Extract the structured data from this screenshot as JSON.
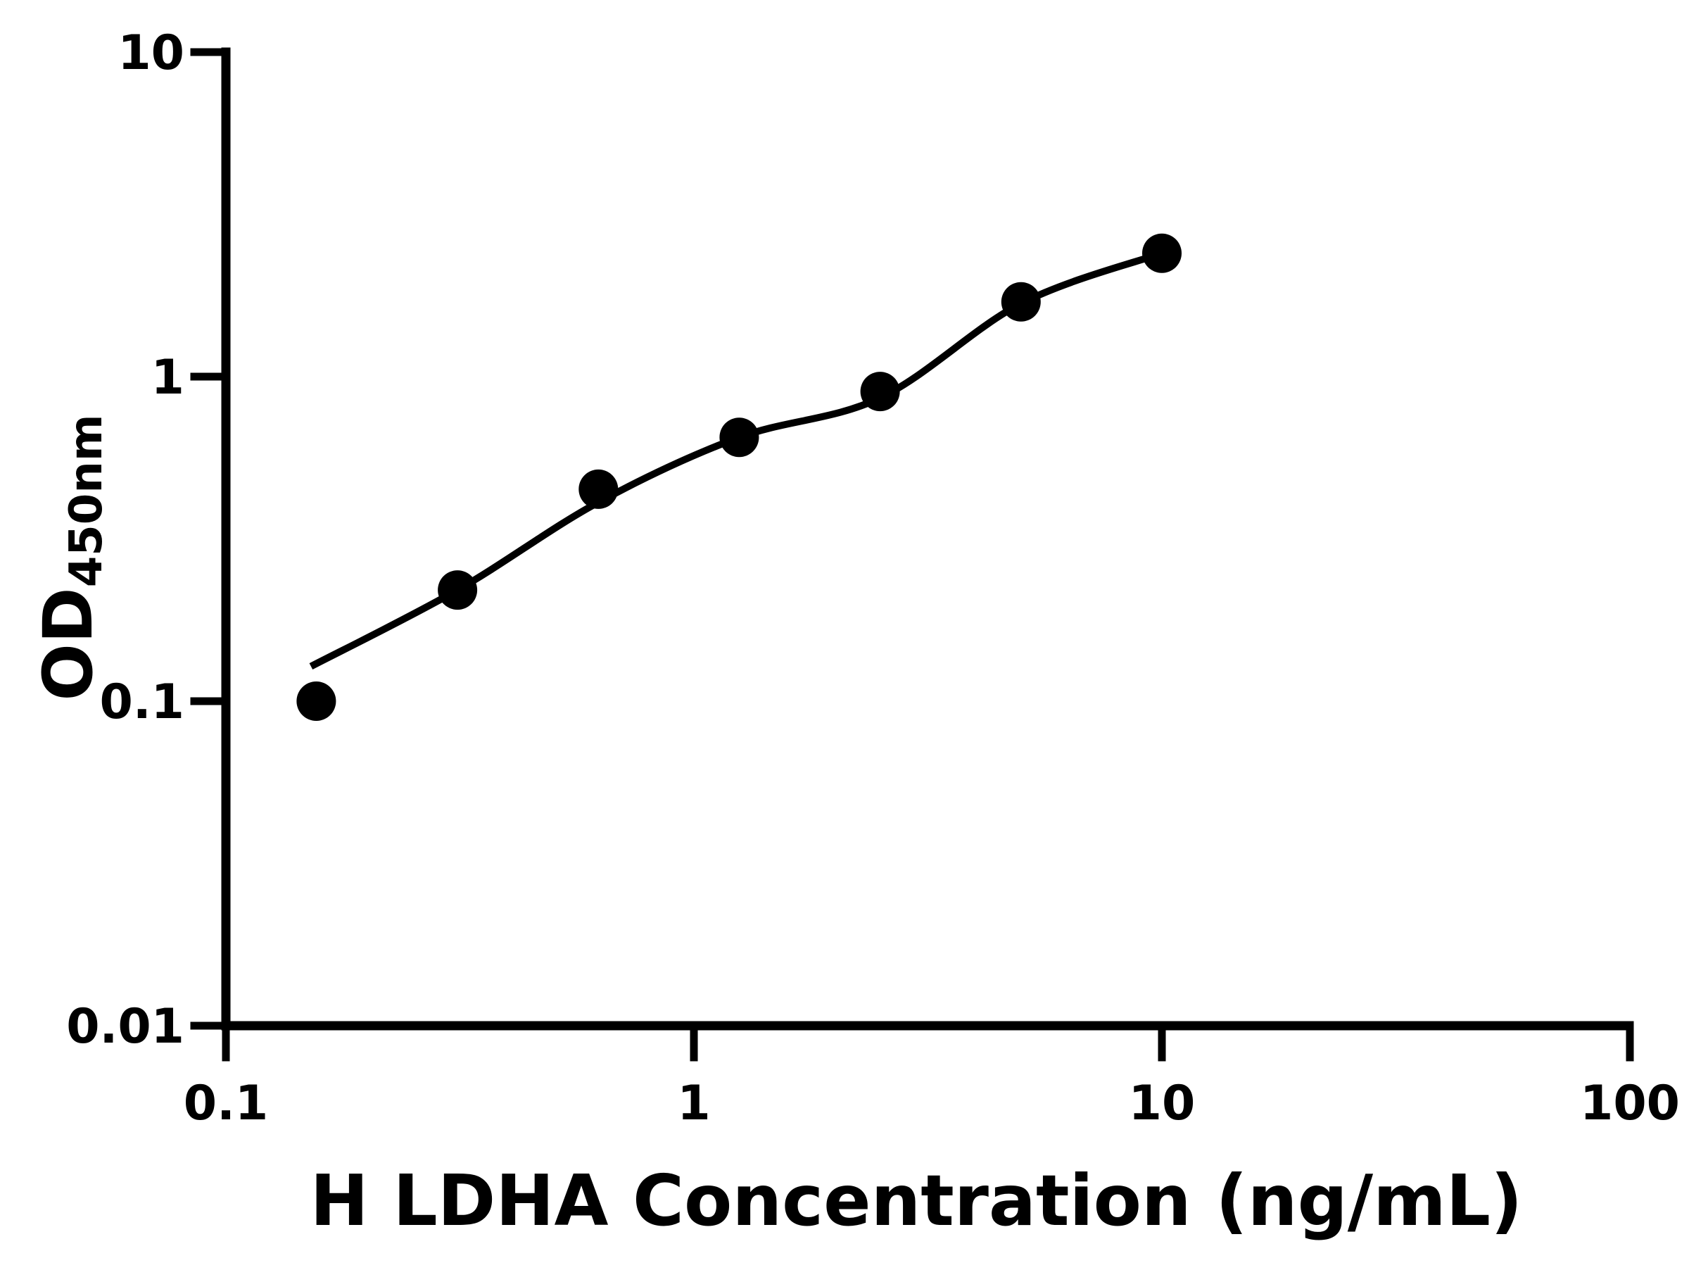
{
  "figure": {
    "background_color": "#ffffff",
    "ink_color": "#000000"
  },
  "chart_data": {
    "type": "scatter",
    "title": "",
    "xlabel": "H LDHA Concentration (ng/mL)",
    "ylabel_main": "OD",
    "ylabel_subscript": "450nm",
    "x_scale": "log",
    "y_scale": "log",
    "xlim": [
      0.1,
      100
    ],
    "ylim": [
      0.01,
      10
    ],
    "grid": false,
    "legend": false,
    "x_ticks": [
      {
        "value": 0.1,
        "label": "0.1"
      },
      {
        "value": 1,
        "label": "1"
      },
      {
        "value": 10,
        "label": "10"
      },
      {
        "value": 100,
        "label": "100"
      }
    ],
    "y_ticks": [
      {
        "value": 10,
        "label": "10"
      },
      {
        "value": 1,
        "label": "1"
      },
      {
        "value": 0.1,
        "label": "0.1"
      },
      {
        "value": 0.01,
        "label": "0.01"
      }
    ],
    "series": [
      {
        "name": "standard curve data points",
        "marker": "filled-circle",
        "marker_color": "#000000",
        "points": [
          {
            "x": 0.156,
            "od": 0.1
          },
          {
            "x": 0.3125,
            "od": 0.22
          },
          {
            "x": 0.625,
            "od": 0.45
          },
          {
            "x": 1.25,
            "od": 0.65
          },
          {
            "x": 2.5,
            "od": 0.9
          },
          {
            "x": 5,
            "od": 1.7
          },
          {
            "x": 10,
            "od": 2.4
          }
        ]
      }
    ],
    "fit_curve": {
      "name": "fitted standard curve line",
      "line_color": "#000000",
      "points": [
        {
          "x": 0.152,
          "od": 0.128
        },
        {
          "x": 0.3125,
          "od": 0.22
        },
        {
          "x": 0.625,
          "od": 0.41
        },
        {
          "x": 1.25,
          "od": 0.65
        },
        {
          "x": 2.5,
          "od": 0.86
        },
        {
          "x": 5,
          "od": 1.68
        },
        {
          "x": 10,
          "od": 2.4
        }
      ]
    }
  }
}
